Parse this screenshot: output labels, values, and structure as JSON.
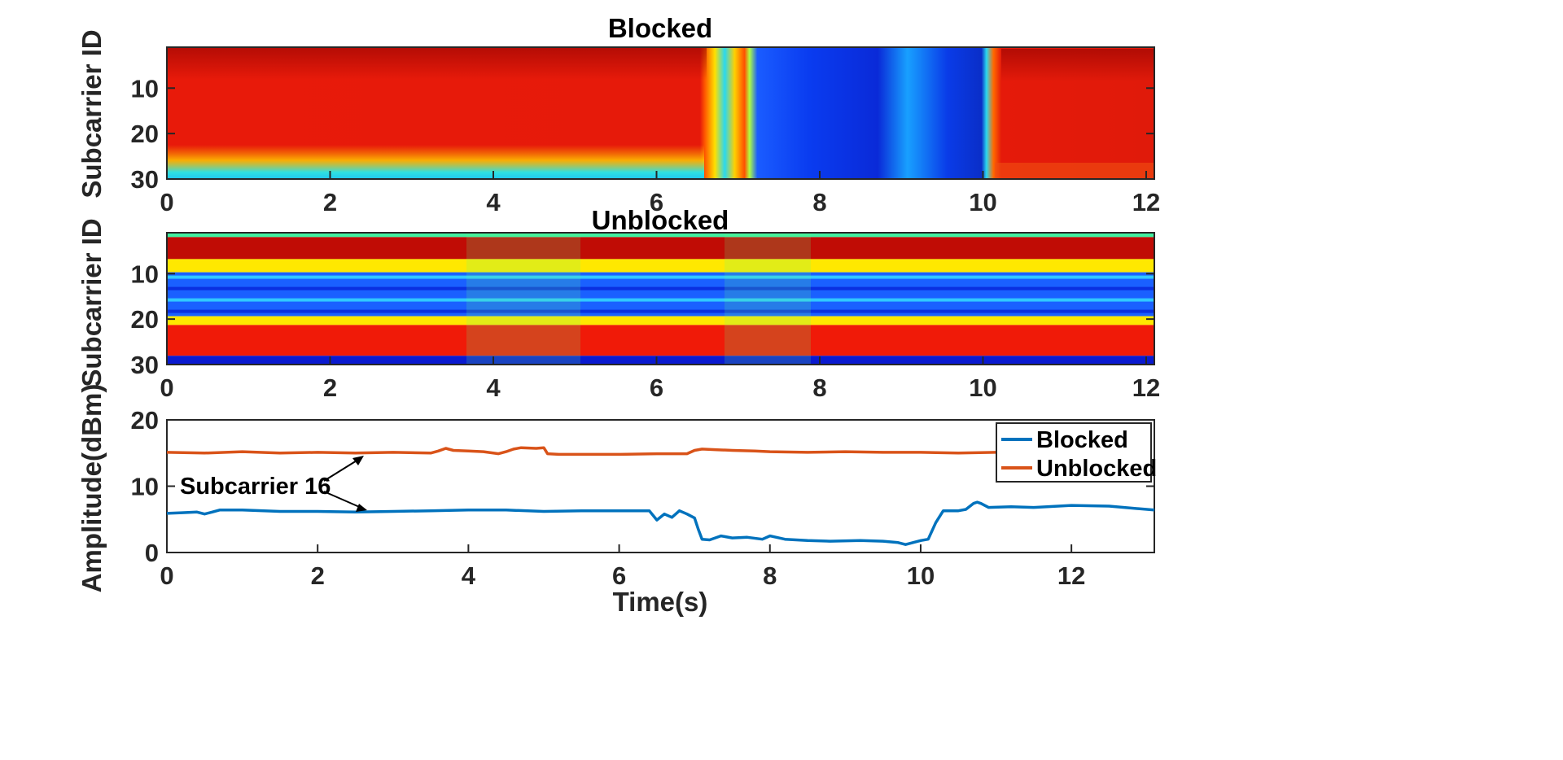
{
  "chart_data": [
    {
      "type": "heatmap",
      "title": "Blocked",
      "xlabel": "",
      "ylabel": "Subcarrier ID",
      "xlim": [
        0,
        12.1
      ],
      "ylim": [
        30,
        1
      ],
      "xticks": [
        "0",
        "2",
        "4",
        "6",
        "8",
        "10",
        "12"
      ],
      "yticks": [
        "10",
        "20",
        "30"
      ],
      "colormap": "jet",
      "regions": [
        {
          "from_s": 0.0,
          "to_s": 6.6,
          "level": "high (red)",
          "note": "cyan/yellow band near subcarriers 27-30"
        },
        {
          "from_s": 6.6,
          "to_s": 7.2,
          "level": "transition"
        },
        {
          "from_s": 7.2,
          "to_s": 10.1,
          "level": "low (blue)"
        },
        {
          "from_s": 10.1,
          "to_s": 12.1,
          "level": "high (red)"
        }
      ]
    },
    {
      "type": "heatmap",
      "title": "Unblocked",
      "xlabel": "",
      "ylabel": "Subcarrier ID",
      "xlim": [
        0,
        12.1
      ],
      "ylim": [
        30,
        1
      ],
      "xticks": [
        "0",
        "2",
        "4",
        "6",
        "8",
        "10",
        "12"
      ],
      "yticks": [
        "10",
        "20",
        "30"
      ],
      "colormap": "jet",
      "row_bands": [
        {
          "rows": [
            1,
            1
          ],
          "level": "cyan-green"
        },
        {
          "rows": [
            2,
            6
          ],
          "level": "dark red"
        },
        {
          "rows": [
            7,
            9
          ],
          "level": "yellow"
        },
        {
          "rows": [
            10,
            19
          ],
          "level": "blue / cyan stripes"
        },
        {
          "rows": [
            20,
            21
          ],
          "level": "yellow"
        },
        {
          "rows": [
            22,
            28
          ],
          "level": "red"
        },
        {
          "rows": [
            29,
            30
          ],
          "level": "dark blue"
        }
      ],
      "disturbances_s": [
        [
          3.7,
          5.1
        ],
        [
          6.85,
          7.9
        ]
      ]
    },
    {
      "type": "line",
      "title": "",
      "xlabel": "Time(s)",
      "ylabel": "Amplitude(dBm)",
      "xlim": [
        0,
        13.1
      ],
      "ylim": [
        0,
        20
      ],
      "xticks": [
        "0",
        "2",
        "4",
        "6",
        "8",
        "10",
        "12"
      ],
      "yticks": [
        "0",
        "10",
        "20"
      ],
      "legend": "top-right",
      "annotation": "Subcarrier 16",
      "series": [
        {
          "name": "Blocked",
          "color": "#0072BD",
          "x": [
            0,
            0.2,
            0.4,
            0.5,
            0.6,
            0.7,
            1.0,
            1.5,
            2.0,
            2.5,
            3.0,
            3.5,
            4.0,
            4.5,
            5.0,
            5.5,
            6.0,
            6.4,
            6.5,
            6.6,
            6.7,
            6.8,
            6.9,
            7.0,
            7.05,
            7.1,
            7.2,
            7.35,
            7.5,
            7.7,
            7.9,
            8.0,
            8.2,
            8.5,
            8.8,
            9.2,
            9.5,
            9.7,
            9.8,
            10.0,
            10.1,
            10.2,
            10.3,
            10.5,
            10.6,
            10.7,
            10.75,
            10.8,
            10.9,
            11.2,
            11.5,
            12.0,
            12.5,
            13.1
          ],
          "y": [
            5.9,
            6.0,
            6.1,
            5.8,
            6.1,
            6.4,
            6.4,
            6.2,
            6.2,
            6.1,
            6.2,
            6.3,
            6.4,
            6.4,
            6.2,
            6.3,
            6.3,
            6.3,
            4.9,
            5.8,
            5.3,
            6.3,
            5.8,
            5.2,
            3.5,
            2.0,
            1.9,
            2.5,
            2.2,
            2.3,
            2.0,
            2.5,
            2.0,
            1.8,
            1.7,
            1.8,
            1.7,
            1.5,
            1.2,
            1.8,
            2.0,
            4.5,
            6.3,
            6.3,
            6.5,
            7.4,
            7.6,
            7.4,
            6.8,
            6.9,
            6.8,
            7.1,
            7.0,
            6.4
          ]
        },
        {
          "name": "Unblocked",
          "color": "#D95319",
          "x": [
            0,
            0.5,
            1.0,
            1.5,
            2.0,
            2.5,
            3.0,
            3.5,
            3.6,
            3.7,
            3.8,
            4.0,
            4.2,
            4.4,
            4.5,
            4.6,
            4.7,
            4.9,
            5.0,
            5.05,
            5.2,
            5.5,
            6.0,
            6.5,
            6.9,
            7.0,
            7.1,
            7.3,
            7.5,
            7.8,
            8.0,
            8.5,
            9.0,
            9.5,
            10.0,
            10.5,
            11.0
          ],
          "y": [
            15.1,
            15.0,
            15.2,
            15.0,
            15.1,
            15.0,
            15.1,
            15.0,
            15.3,
            15.7,
            15.4,
            15.3,
            15.2,
            14.9,
            15.2,
            15.6,
            15.8,
            15.7,
            15.8,
            14.9,
            14.8,
            14.8,
            14.8,
            14.9,
            14.9,
            15.4,
            15.6,
            15.5,
            15.4,
            15.3,
            15.2,
            15.1,
            15.2,
            15.1,
            15.1,
            15.0,
            15.1
          ]
        }
      ]
    }
  ]
}
